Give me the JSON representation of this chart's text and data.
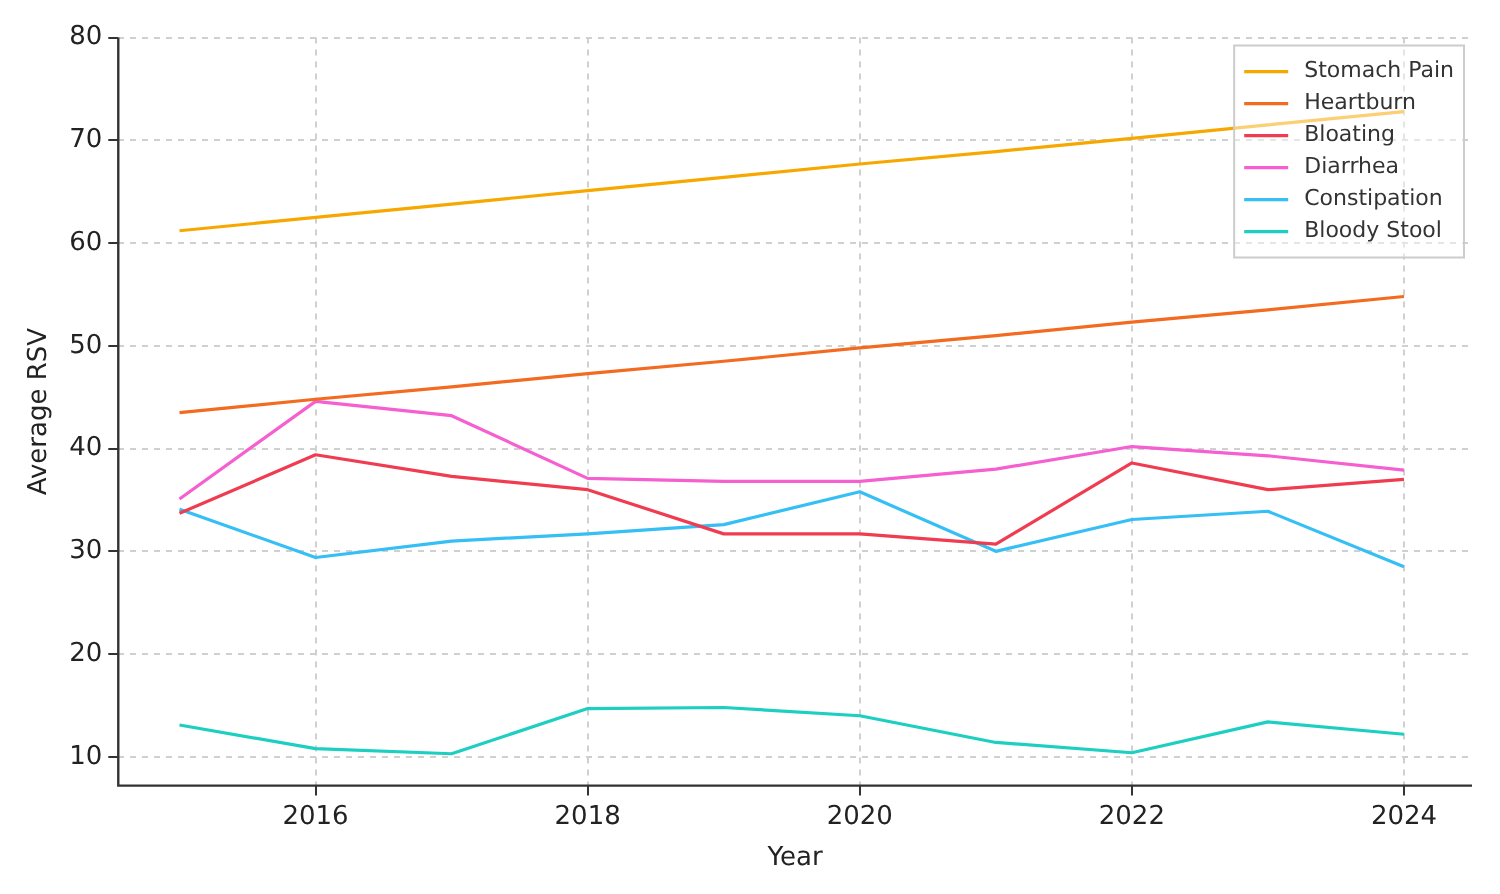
{
  "chart_data": {
    "type": "line",
    "xlabel": "Year",
    "ylabel": "Average RSV",
    "x": [
      2015,
      2016,
      2017,
      2018,
      2019,
      2020,
      2021,
      2022,
      2023,
      2024
    ],
    "series": [
      {
        "name": "Stomach Pain",
        "color": "#f7a800",
        "values": [
          61.2,
          62.5,
          63.8,
          65.1,
          66.4,
          67.7,
          68.9,
          70.2,
          71.5,
          72.8
        ]
      },
      {
        "name": "Heartburn",
        "color": "#f26b21",
        "values": [
          43.5,
          44.8,
          46.0,
          47.3,
          48.5,
          49.8,
          51.0,
          52.3,
          53.5,
          54.8
        ]
      },
      {
        "name": "Bloating",
        "color": "#f03c50",
        "values": [
          33.7,
          39.4,
          37.3,
          36.0,
          31.7,
          31.7,
          30.7,
          38.6,
          36.0,
          37.0
        ]
      },
      {
        "name": "Diarrhea",
        "color": "#f55fd0",
        "values": [
          35.1,
          44.6,
          43.2,
          37.1,
          36.8,
          36.8,
          38.0,
          40.2,
          39.3,
          37.9
        ]
      },
      {
        "name": "Constipation",
        "color": "#35bff5",
        "values": [
          34.1,
          29.4,
          31.0,
          31.7,
          32.6,
          35.8,
          30.0,
          33.1,
          33.9,
          28.5
        ]
      },
      {
        "name": "Bloody Stool",
        "color": "#1ccfc0",
        "values": [
          13.1,
          10.8,
          10.3,
          14.7,
          14.8,
          14.0,
          11.4,
          10.4,
          13.4,
          12.2
        ]
      }
    ],
    "xlim": [
      2014.55,
      2024.5
    ],
    "xticks": [
      2016,
      2018,
      2020,
      2022,
      2024
    ],
    "ylim": [
      7.2,
      80
    ],
    "yticks": [
      10,
      20,
      30,
      40,
      50,
      60,
      70,
      80
    ],
    "grid": true,
    "legend": "top right",
    "line_style": "solid",
    "marker": "none"
  }
}
